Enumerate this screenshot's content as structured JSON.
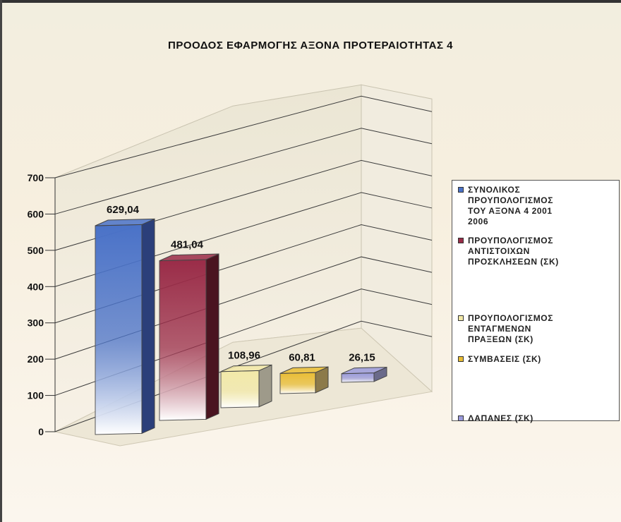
{
  "chart_data": {
    "type": "bar",
    "title": "ΠΡΟΟΔΟΣ ΕΦΑΡΜΟΓΗΣ ΑΞΟΝΑ ΠΡΟΤΕΡΑΙΟΤΗΤΑΣ 4",
    "categories": [
      "ΣΥΝΟΛΙΚΟΣ ΠΡΟΥΠΟΛΟΓΙΣΜΟΣ ΤΟΥ ΑΞΟΝΑ 4 2001 2006",
      "ΠΡΟΥΠΟΛΟΓΙΣΜΟΣ ΑΝΤΙΣΤΟΙΧΩΝ ΠΡΟΣΚΛΗΣΕΩΝ (ΣΚ)",
      "ΠΡΟΥΠΟΛΟΓΙΣΜΟΣ ΕΝΤΑΓΜΕΝΩΝ ΠΡΑΞΕΩΝ (ΣΚ)",
      "ΣΥΜΒΑΣΕΙΣ (ΣΚ)",
      "ΔΑΠΑΝΕΣ (ΣΚ)"
    ],
    "values": [
      629.04,
      481.04,
      108.96,
      60.81,
      26.15
    ],
    "value_labels": [
      "629,04",
      "481,04",
      "108,96",
      "60,81",
      "26,15"
    ],
    "yticks": [
      "0",
      "100",
      "200",
      "300",
      "400",
      "500",
      "600",
      "700"
    ],
    "ylim": [
      0,
      700
    ],
    "grid": true,
    "legend_position": "right",
    "colors": [
      "#4a72c8",
      "#9a2c48",
      "#f2e9a8",
      "#e9bd34",
      "#9a9adc"
    ]
  },
  "legend": {
    "items": [
      {
        "lines": [
          "ΣΥΝΟΛΙΚΟΣ",
          "ΠΡΟΥΠΟΛΟΓΙΣΜΟΣ",
          "ΤΟΥ ΑΞΟΝΑ 4 2001",
          "2006"
        ]
      },
      {
        "lines": [
          "ΠΡΟΥΠΟΛΟΓΙΣΜΟΣ",
          "ΑΝΤΙΣΤΟΙΧΩΝ",
          "ΠΡΟΣΚΛΗΣΕΩΝ (ΣΚ)"
        ]
      },
      {
        "lines": [
          "ΠΡΟΥΠΟΛΟΓΙΣΜΟΣ",
          "ΕΝΤΑΓΜΕΝΩΝ",
          "ΠΡΑΞΕΩΝ (ΣΚ)"
        ]
      },
      {
        "lines": [
          "ΣΥΜΒΑΣΕΙΣ (ΣΚ)"
        ]
      },
      {
        "lines": [
          "ΔΑΠΑΝΕΣ (ΣΚ)"
        ]
      }
    ]
  }
}
